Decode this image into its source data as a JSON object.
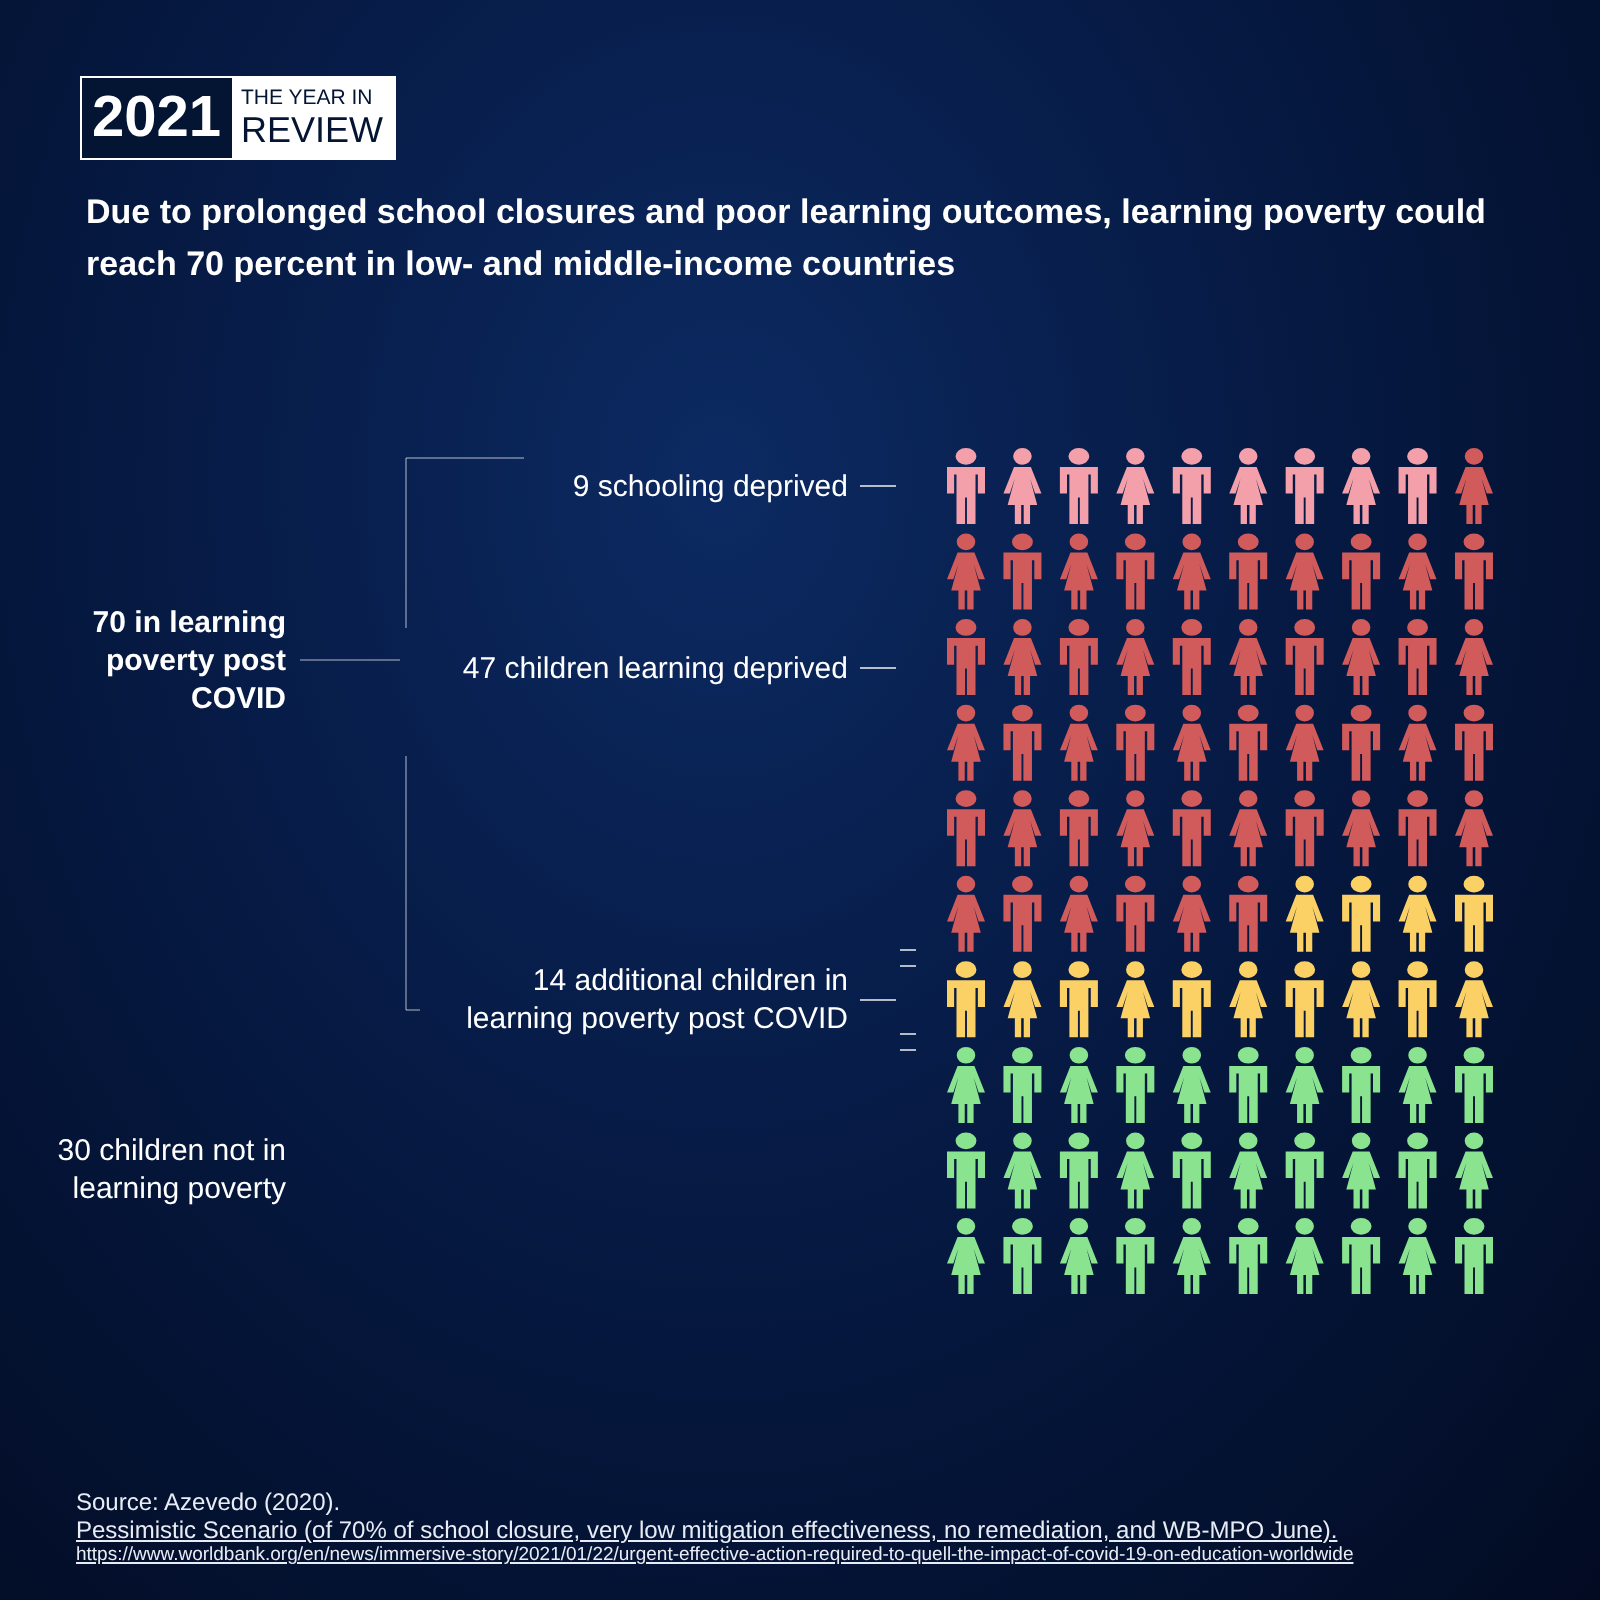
{
  "chart_data": {
    "type": "other",
    "title": "Due to prolonged school closures and poor learning outcomes, learning poverty could reach 70 percent in low- and middle-income countries",
    "categories": [
      "schooling deprived",
      "children learning deprived",
      "additional children in learning poverty post COVID",
      "children not in learning poverty"
    ],
    "values": [
      9,
      47,
      14,
      30
    ],
    "colors": [
      "#f4a0ab",
      "#d15a5b",
      "#fbd064",
      "#8ae38f"
    ],
    "data_labels": true,
    "annotations": [
      "2021",
      "THE YEAR IN REVIEW",
      "70 in learning poverty post COVID",
      "Source: Azevedo (2020).",
      "Pessimistic Scenario (of 70% of school closure, very low mitigation effectiveness, no remediation, and WB-MPO June).",
      "https://www.worldbank.org/en/news/immersive-story/2021/01/22/urgent-effective-action-required-to-quell-the-impact-of-covid-19-on-education-worldwide"
    ]
  }
}
